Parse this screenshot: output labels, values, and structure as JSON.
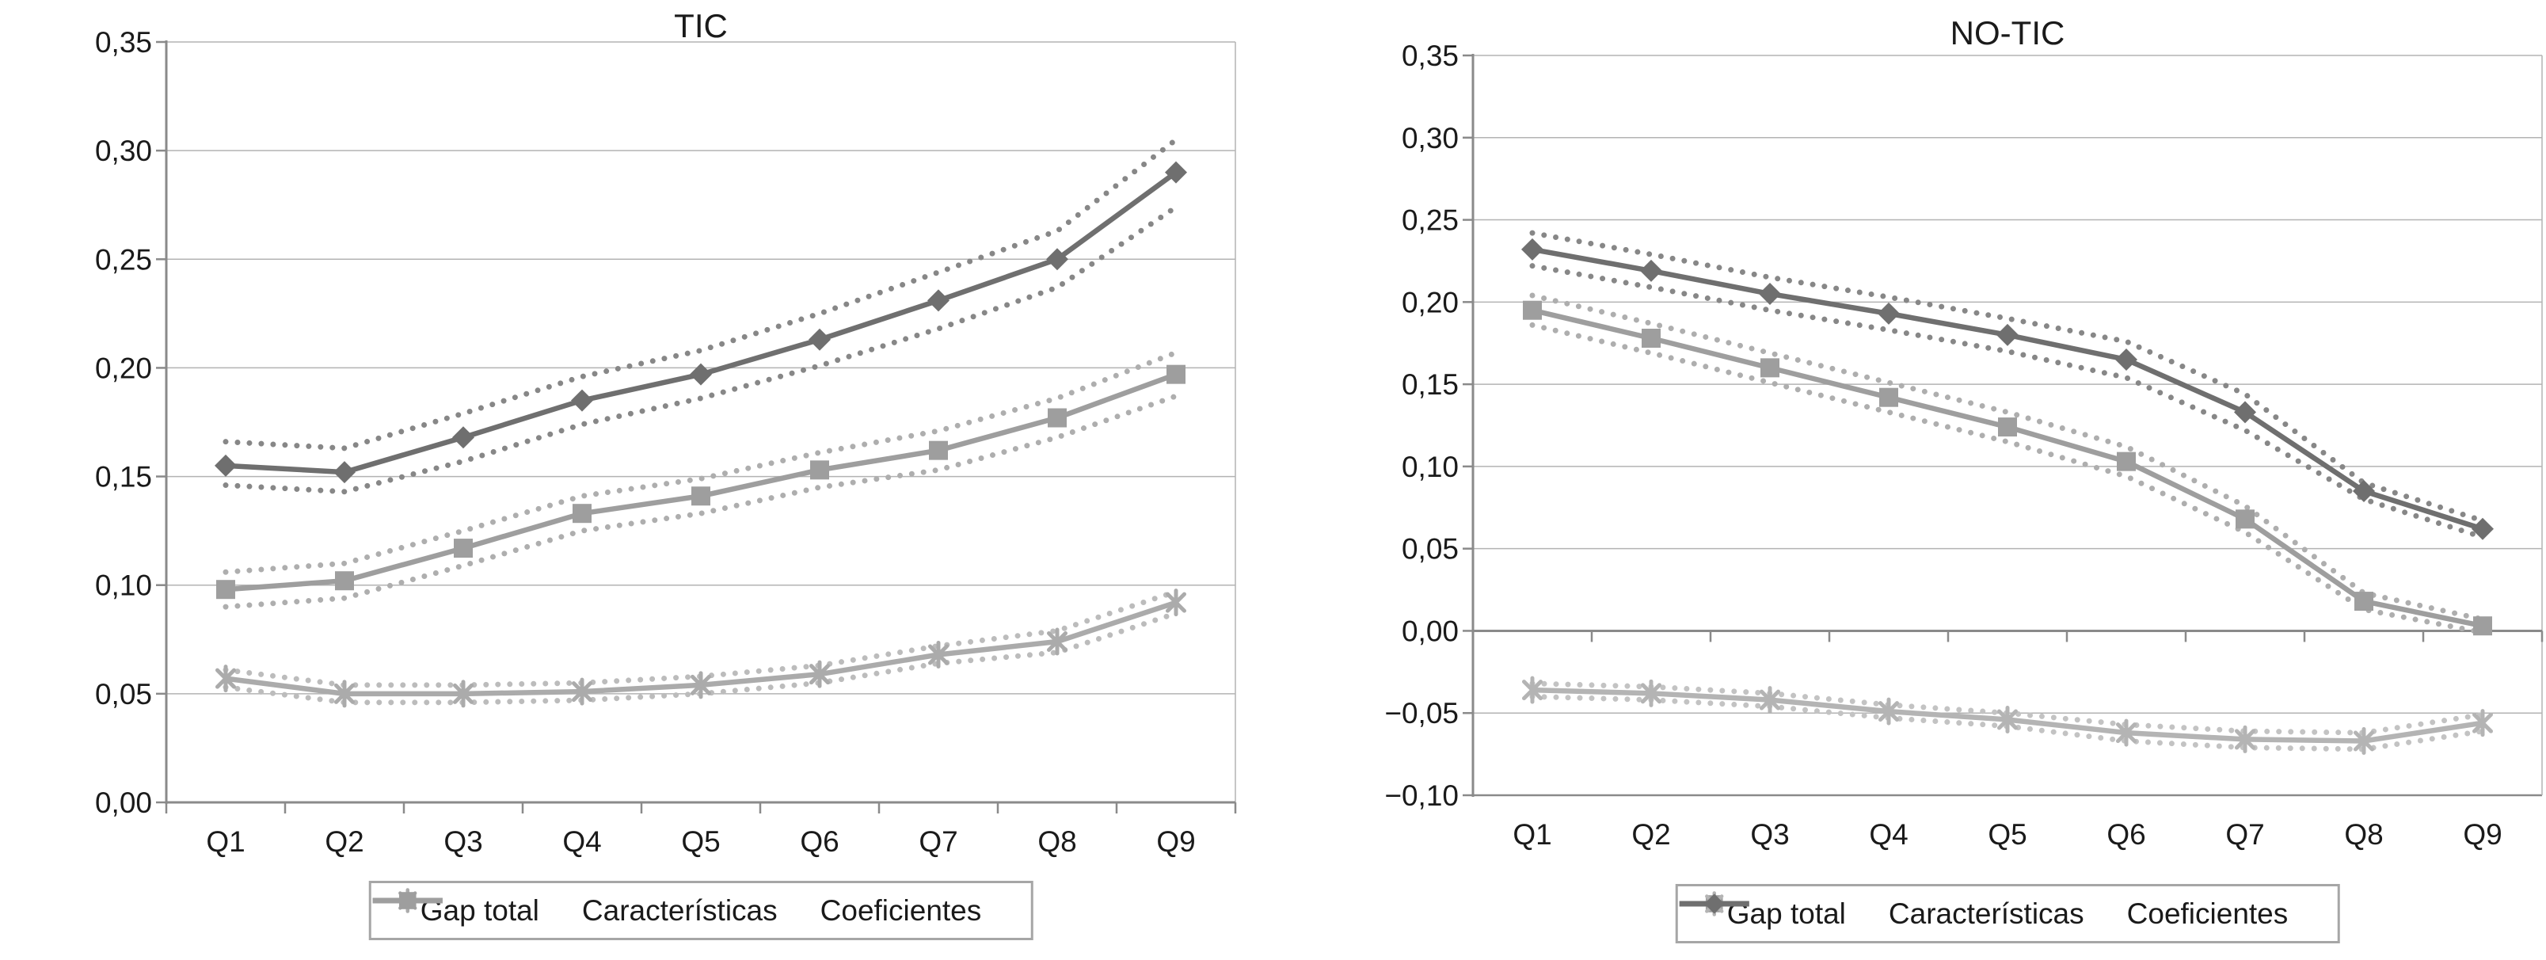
{
  "page": {
    "background": "#ffffff",
    "gridline_color": "#b3b3b3",
    "axis_color": "#8a8a8a",
    "text_color": "#1a1a1a",
    "legend_border_color": "#a6a6a6"
  },
  "chart_data": [
    {
      "type": "line",
      "title": "TIC",
      "categories": [
        "Q1",
        "Q2",
        "Q3",
        "Q4",
        "Q5",
        "Q6",
        "Q7",
        "Q8",
        "Q9"
      ],
      "xlabel": "",
      "ylabel": "",
      "grid": true,
      "legend_position": "bottom",
      "y_axis": {
        "min": 0.0,
        "max": 0.35,
        "step": 0.05,
        "decimal_format": "comma",
        "tick_labels": [
          "0,35",
          "0,30",
          "0,25",
          "0,20",
          "0,15",
          "0,10",
          "0,05",
          "0,00"
        ]
      },
      "series": [
        {
          "name": "Gap total",
          "marker": "diamond",
          "color": "#6f6f6f",
          "band_color": "#878787",
          "values": [
            0.155,
            0.152,
            0.168,
            0.185,
            0.197,
            0.213,
            0.231,
            0.25,
            0.29
          ],
          "band_upper": [
            0.166,
            0.163,
            0.179,
            0.196,
            0.208,
            0.225,
            0.244,
            0.263,
            0.305
          ],
          "band_lower": [
            0.146,
            0.143,
            0.157,
            0.174,
            0.186,
            0.201,
            0.218,
            0.237,
            0.274
          ]
        },
        {
          "name": "Características",
          "marker": "asterisk",
          "color": "#ababab",
          "band_color": "#bcbcbc",
          "values": [
            0.057,
            0.05,
            0.05,
            0.051,
            0.054,
            0.059,
            0.068,
            0.074,
            0.092
          ],
          "band_upper": [
            0.061,
            0.054,
            0.054,
            0.055,
            0.058,
            0.063,
            0.072,
            0.079,
            0.097
          ],
          "band_lower": [
            0.053,
            0.046,
            0.046,
            0.047,
            0.05,
            0.055,
            0.064,
            0.069,
            0.087
          ]
        },
        {
          "name": "Coeficientes",
          "marker": "square",
          "color": "#9e9e9e",
          "band_color": "#aeaeae",
          "values": [
            0.098,
            0.102,
            0.117,
            0.133,
            0.141,
            0.153,
            0.162,
            0.177,
            0.197
          ],
          "band_upper": [
            0.106,
            0.11,
            0.125,
            0.141,
            0.149,
            0.161,
            0.171,
            0.186,
            0.207
          ],
          "band_lower": [
            0.09,
            0.094,
            0.109,
            0.125,
            0.133,
            0.145,
            0.153,
            0.168,
            0.187
          ]
        }
      ]
    },
    {
      "type": "line",
      "title": "NO-TIC",
      "categories": [
        "Q1",
        "Q2",
        "Q3",
        "Q4",
        "Q5",
        "Q6",
        "Q7",
        "Q8",
        "Q9"
      ],
      "xlabel": "",
      "ylabel": "",
      "grid": true,
      "legend_position": "bottom",
      "y_axis": {
        "min": -0.1,
        "max": 0.35,
        "step": 0.05,
        "decimal_format": "comma",
        "tick_labels": [
          "0,35",
          "0,30",
          "0,25",
          "0,20",
          "0,15",
          "0,10",
          "0,05",
          "0,00",
          "−0,05",
          "−0,10"
        ]
      },
      "series": [
        {
          "name": "Gap total",
          "marker": "square",
          "color": "#9e9e9e",
          "band_color": "#aeaeae",
          "values": [
            0.195,
            0.178,
            0.16,
            0.142,
            0.124,
            0.103,
            0.068,
            0.018,
            0.003
          ],
          "band_upper": [
            0.204,
            0.187,
            0.169,
            0.151,
            0.133,
            0.112,
            0.076,
            0.023,
            0.007
          ],
          "band_lower": [
            0.186,
            0.169,
            0.151,
            0.133,
            0.115,
            0.094,
            0.06,
            0.013,
            -0.001
          ]
        },
        {
          "name": "Características",
          "marker": "asterisk",
          "color": "#b4b4b4",
          "band_color": "#c3c3c3",
          "values": [
            -0.036,
            -0.038,
            -0.042,
            -0.049,
            -0.054,
            -0.062,
            -0.066,
            -0.067,
            -0.056
          ],
          "band_upper": [
            -0.032,
            -0.034,
            -0.038,
            -0.045,
            -0.05,
            -0.057,
            -0.061,
            -0.062,
            -0.051
          ],
          "band_lower": [
            -0.04,
            -0.042,
            -0.046,
            -0.053,
            -0.058,
            -0.067,
            -0.071,
            -0.072,
            -0.061
          ]
        },
        {
          "name": "Coeficientes",
          "marker": "diamond",
          "color": "#6f6f6f",
          "band_color": "#878787",
          "values": [
            0.232,
            0.219,
            0.205,
            0.193,
            0.18,
            0.165,
            0.133,
            0.085,
            0.062
          ],
          "band_upper": [
            0.242,
            0.229,
            0.215,
            0.203,
            0.19,
            0.176,
            0.144,
            0.09,
            0.067
          ],
          "band_lower": [
            0.222,
            0.209,
            0.195,
            0.183,
            0.17,
            0.154,
            0.122,
            0.08,
            0.057
          ]
        }
      ]
    }
  ]
}
